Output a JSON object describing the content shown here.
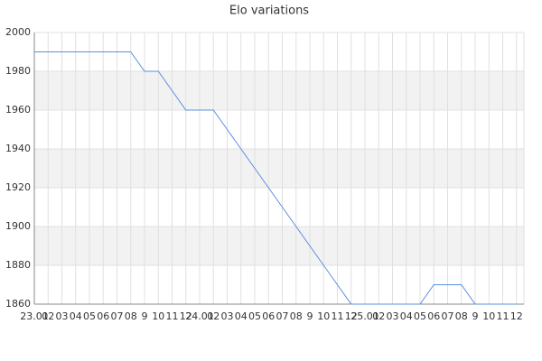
{
  "chart_data": {
    "type": "line",
    "title": "Elo variations",
    "categories": [
      "23.01",
      "02",
      "03",
      "04",
      "05",
      "06",
      "07",
      "08",
      "9",
      "10",
      "11",
      "12",
      "24.01",
      "02",
      "03",
      "04",
      "05",
      "06",
      "07",
      "08",
      "9",
      "10",
      "11",
      "12",
      "25.01",
      "02",
      "03",
      "04",
      "05",
      "06",
      "07",
      "08",
      "9",
      "10",
      "11",
      "12"
    ],
    "series": [
      {
        "name": "Elo",
        "color": "#5b8fdf",
        "values": [
          1990,
          1990,
          1990,
          1990,
          1990,
          1990,
          1990,
          1990,
          1980,
          1980,
          1970,
          1960,
          1960,
          1960,
          1950,
          1940,
          1930,
          1920,
          1910,
          1900,
          1890,
          1880,
          1870,
          1860,
          1860,
          1860,
          1860,
          1860,
          1860,
          1870,
          1870,
          1870,
          1860,
          1860,
          1860,
          1860
        ]
      }
    ],
    "ylim": [
      1860,
      2000
    ],
    "yticks": [
      1860,
      1880,
      1900,
      1920,
      1940,
      1960,
      1980,
      2000
    ],
    "grid": true
  }
}
